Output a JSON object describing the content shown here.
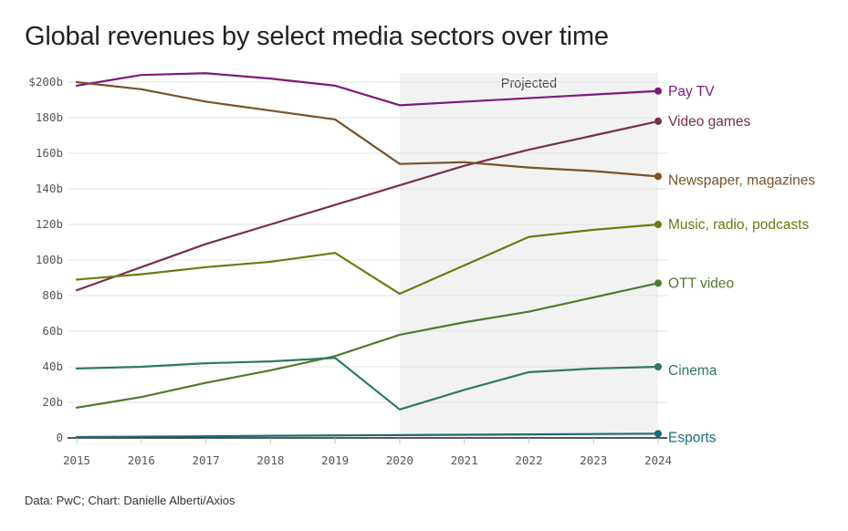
{
  "title": "Global revenues by select media sectors over time",
  "source": "Data: PwC; Chart: Danielle Alberti/Axios",
  "chart_data": {
    "type": "line",
    "x": [
      2015,
      2016,
      2017,
      2018,
      2019,
      2020,
      2021,
      2022,
      2023,
      2024
    ],
    "x_tick_labels": [
      "2015",
      "2016",
      "2017",
      "2018",
      "2019",
      "2020",
      "2021",
      "2022",
      "2023",
      "2024"
    ],
    "y_ticks": [
      0,
      20,
      40,
      60,
      80,
      100,
      120,
      140,
      160,
      180,
      200
    ],
    "y_tick_labels": [
      "0",
      "20b",
      "40b",
      "60b",
      "80b",
      "100b",
      "120b",
      "140b",
      "160b",
      "180b",
      "$200b"
    ],
    "ylim": [
      0,
      205
    ],
    "grid": true,
    "shaded_region": {
      "label": "Projected",
      "x_start": 2020,
      "x_end": 2024
    },
    "series": [
      {
        "name": "Pay TV",
        "color": "#7b1a7b",
        "values": [
          198,
          204,
          205,
          202,
          198,
          187,
          189,
          191,
          193,
          195
        ]
      },
      {
        "name": "Video games",
        "color": "#7a2e4f",
        "values": [
          83,
          96,
          109,
          120,
          131,
          142,
          153,
          162,
          170,
          178
        ]
      },
      {
        "name": "Newspaper, magazines",
        "color": "#7a5229",
        "values": [
          200,
          196,
          189,
          184,
          179,
          154,
          155,
          152,
          150,
          147
        ]
      },
      {
        "name": "Music, radio, podcasts",
        "color": "#6b7a12",
        "values": [
          89,
          92,
          96,
          99,
          104,
          81,
          97,
          113,
          117,
          120
        ]
      },
      {
        "name": "OTT video",
        "color": "#4f7a2e",
        "values": [
          17,
          23,
          31,
          38,
          46,
          58,
          65,
          71,
          79,
          87
        ]
      },
      {
        "name": "Cinema",
        "color": "#2e7a5c",
        "values": [
          39,
          40,
          42,
          43,
          45,
          16,
          27,
          37,
          39,
          40
        ]
      },
      {
        "name": "Esports",
        "color": "#1a6b7a",
        "values": [
          0.5,
          0.7,
          0.9,
          1.2,
          1.4,
          1.6,
          1.8,
          2.0,
          2.2,
          2.4
        ]
      }
    ]
  }
}
